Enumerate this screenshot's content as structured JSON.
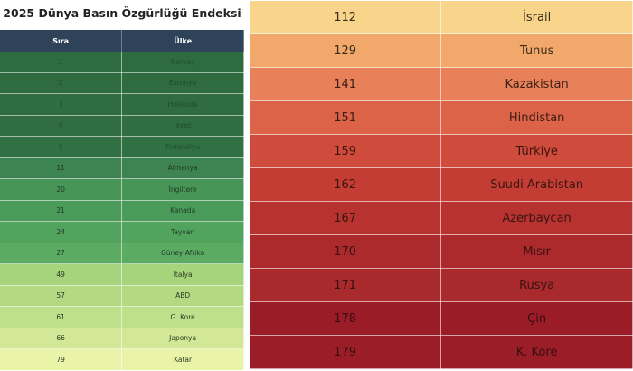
{
  "chart_data": {
    "type": "table",
    "title": "2025 Dünya Basın Özgürlüğü Endeksi",
    "columns": [
      "Sıra",
      "Ülke"
    ],
    "rows": [
      {
        "rank": "1",
        "country": "Norveç",
        "bg": "#2e6b3f",
        "fg": "#1f4d2c"
      },
      {
        "rank": "2",
        "country": "Estonya",
        "bg": "#2e6b3f",
        "fg": "#1f4d2c"
      },
      {
        "rank": "3",
        "country": "Hollanda",
        "bg": "#2f6c40",
        "fg": "#1f4d2c"
      },
      {
        "rank": "4",
        "country": "İsveç",
        "bg": "#306d41",
        "fg": "#1f4d2c"
      },
      {
        "rank": "5",
        "country": "Finlandiya",
        "bg": "#317043",
        "fg": "#1f4d2c"
      },
      {
        "rank": "11",
        "country": "Almanya",
        "bg": "#3e8452",
        "fg": "#1f3a25"
      },
      {
        "rank": "20",
        "country": "İngiltere",
        "bg": "#479557",
        "fg": "#1f3a25"
      },
      {
        "rank": "21",
        "country": "Kanada",
        "bg": "#4a9a5a",
        "fg": "#1f3a25"
      },
      {
        "rank": "24",
        "country": "Tayvan",
        "bg": "#52a35e",
        "fg": "#1f3a25"
      },
      {
        "rank": "27",
        "country": "Güney Afrika",
        "bg": "#5cab63",
        "fg": "#1f3a25"
      },
      {
        "rank": "49",
        "country": "İtalya",
        "bg": "#a5d47c",
        "fg": "#2a3a20"
      },
      {
        "rank": "57",
        "country": "ABD",
        "bg": "#b3da83",
        "fg": "#2a3a20"
      },
      {
        "rank": "61",
        "country": "G. Kore",
        "bg": "#bfe08b",
        "fg": "#2a3a20"
      },
      {
        "rank": "66",
        "country": "Japonya",
        "bg": "#d2e896",
        "fg": "#2a3a20"
      },
      {
        "rank": "79",
        "country": "Katar",
        "bg": "#e9f4a8",
        "fg": "#2a3a20"
      },
      {
        "rank": "112",
        "country": "İsrail",
        "bg": "#f8d58a",
        "fg": "#3a2a18"
      },
      {
        "rank": "129",
        "country": "Tunus",
        "bg": "#f1a86a",
        "fg": "#3a2a18"
      },
      {
        "rank": "141",
        "country": "Kazakistan",
        "bg": "#e8805a",
        "fg": "#3a1f15"
      },
      {
        "rank": "151",
        "country": "Hindistan",
        "bg": "#dc6248",
        "fg": "#3a1f15"
      },
      {
        "rank": "159",
        "country": "Türkiye",
        "bg": "#cf4b3b",
        "fg": "#3a1510"
      },
      {
        "rank": "162",
        "country": "Suudi Arabistan",
        "bg": "#c43d34",
        "fg": "#3a1510"
      },
      {
        "rank": "167",
        "country": "Azerbaycan",
        "bg": "#b83230",
        "fg": "#3a1510"
      },
      {
        "rank": "170",
        "country": "Mısır",
        "bg": "#ad2a2c",
        "fg": "#3a1010"
      },
      {
        "rank": "171",
        "country": "Rusya",
        "bg": "#a82a2d",
        "fg": "#3a1010"
      },
      {
        "rank": "178",
        "country": "Çin",
        "bg": "#991c27",
        "fg": "#3a0e10"
      },
      {
        "rank": "179",
        "country": "K. Kore",
        "bg": "#9a1d28",
        "fg": "#3a0e10"
      }
    ]
  }
}
